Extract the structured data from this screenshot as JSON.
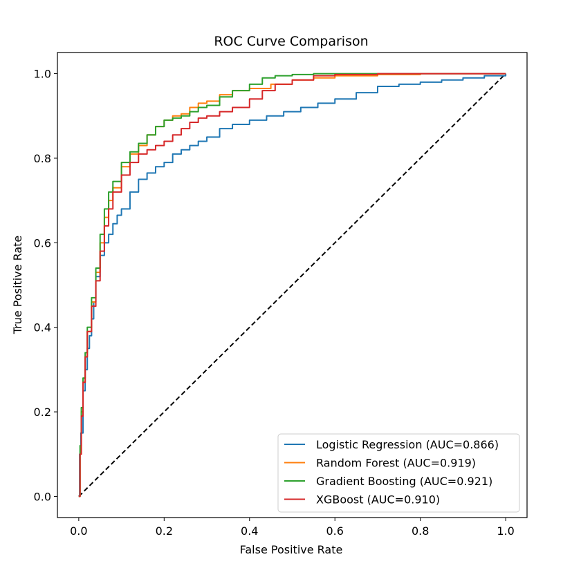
{
  "chart_data": {
    "type": "line",
    "title": "ROC Curve Comparison",
    "xlabel": "False Positive Rate",
    "ylabel": "True Positive Rate",
    "xlim": [
      -0.05,
      1.05
    ],
    "ylim": [
      -0.05,
      1.05
    ],
    "xticks": [
      "0.0",
      "0.2",
      "0.4",
      "0.6",
      "0.8",
      "1.0"
    ],
    "yticks": [
      "0.0",
      "0.2",
      "0.4",
      "0.6",
      "0.8",
      "1.0"
    ],
    "grid": false,
    "legend_position": "lower-right",
    "series": [
      {
        "name": "Logistic Regression (AUC=0.866)",
        "color": "#1f77b4",
        "x": [
          0,
          0.002,
          0.005,
          0.01,
          0.015,
          0.02,
          0.025,
          0.03,
          0.035,
          0.04,
          0.05,
          0.06,
          0.07,
          0.08,
          0.09,
          0.1,
          0.12,
          0.14,
          0.16,
          0.18,
          0.2,
          0.22,
          0.24,
          0.26,
          0.28,
          0.3,
          0.33,
          0.36,
          0.4,
          0.44,
          0.48,
          0.52,
          0.56,
          0.6,
          0.65,
          0.7,
          0.75,
          0.8,
          0.85,
          0.9,
          0.95,
          1.0
        ],
        "y": [
          0,
          0.1,
          0.15,
          0.25,
          0.3,
          0.35,
          0.38,
          0.42,
          0.46,
          0.52,
          0.57,
          0.6,
          0.62,
          0.645,
          0.665,
          0.68,
          0.72,
          0.75,
          0.765,
          0.78,
          0.79,
          0.81,
          0.82,
          0.83,
          0.84,
          0.85,
          0.87,
          0.88,
          0.89,
          0.9,
          0.91,
          0.92,
          0.93,
          0.94,
          0.955,
          0.97,
          0.975,
          0.98,
          0.985,
          0.99,
          0.995,
          1.0
        ]
      },
      {
        "name": "Random Forest (AUC=0.919)",
        "color": "#ff7f0e",
        "x": [
          0,
          0.003,
          0.006,
          0.01,
          0.015,
          0.02,
          0.03,
          0.04,
          0.05,
          0.06,
          0.07,
          0.08,
          0.1,
          0.12,
          0.14,
          0.16,
          0.18,
          0.2,
          0.22,
          0.24,
          0.26,
          0.28,
          0.3,
          0.33,
          0.36,
          0.4,
          0.45,
          0.5,
          0.55,
          0.6,
          0.7,
          0.8,
          0.9,
          1.0
        ],
        "y": [
          0,
          0.1,
          0.2,
          0.27,
          0.33,
          0.39,
          0.46,
          0.53,
          0.6,
          0.66,
          0.7,
          0.73,
          0.78,
          0.81,
          0.83,
          0.855,
          0.875,
          0.89,
          0.9,
          0.905,
          0.92,
          0.93,
          0.935,
          0.95,
          0.96,
          0.965,
          0.975,
          0.985,
          0.99,
          0.995,
          0.998,
          1.0,
          1.0,
          1.0
        ]
      },
      {
        "name": "Gradient Boosting (AUC=0.921)",
        "color": "#2ca02c",
        "x": [
          0,
          0.003,
          0.006,
          0.01,
          0.015,
          0.02,
          0.03,
          0.04,
          0.05,
          0.06,
          0.07,
          0.08,
          0.1,
          0.12,
          0.14,
          0.16,
          0.18,
          0.2,
          0.22,
          0.24,
          0.26,
          0.28,
          0.3,
          0.33,
          0.36,
          0.4,
          0.43,
          0.46,
          0.5,
          0.55,
          0.6,
          0.7,
          0.8,
          0.9,
          1.0
        ],
        "y": [
          0,
          0.12,
          0.21,
          0.28,
          0.34,
          0.4,
          0.47,
          0.54,
          0.62,
          0.68,
          0.72,
          0.745,
          0.79,
          0.815,
          0.835,
          0.855,
          0.875,
          0.89,
          0.895,
          0.9,
          0.91,
          0.92,
          0.925,
          0.945,
          0.96,
          0.975,
          0.99,
          0.995,
          0.998,
          1.0,
          1.0,
          1.0,
          1.0,
          1.0,
          1.0
        ]
      },
      {
        "name": "XGBoost (AUC=0.910)",
        "color": "#d62728",
        "x": [
          0,
          0.003,
          0.006,
          0.01,
          0.015,
          0.02,
          0.03,
          0.04,
          0.05,
          0.06,
          0.07,
          0.08,
          0.1,
          0.12,
          0.14,
          0.16,
          0.18,
          0.2,
          0.22,
          0.24,
          0.26,
          0.28,
          0.3,
          0.33,
          0.36,
          0.4,
          0.43,
          0.46,
          0.5,
          0.55,
          0.6,
          0.7,
          0.8,
          0.9,
          1.0
        ],
        "y": [
          0,
          0.1,
          0.19,
          0.27,
          0.33,
          0.39,
          0.45,
          0.51,
          0.58,
          0.64,
          0.68,
          0.72,
          0.76,
          0.79,
          0.81,
          0.82,
          0.83,
          0.84,
          0.855,
          0.87,
          0.885,
          0.895,
          0.9,
          0.91,
          0.92,
          0.94,
          0.96,
          0.975,
          0.985,
          0.995,
          0.998,
          1.0,
          1.0,
          1.0,
          1.0
        ]
      }
    ],
    "reference_line": {
      "color": "#000000",
      "style": "dashed",
      "x": [
        0,
        1
      ],
      "y": [
        0,
        1
      ]
    }
  }
}
